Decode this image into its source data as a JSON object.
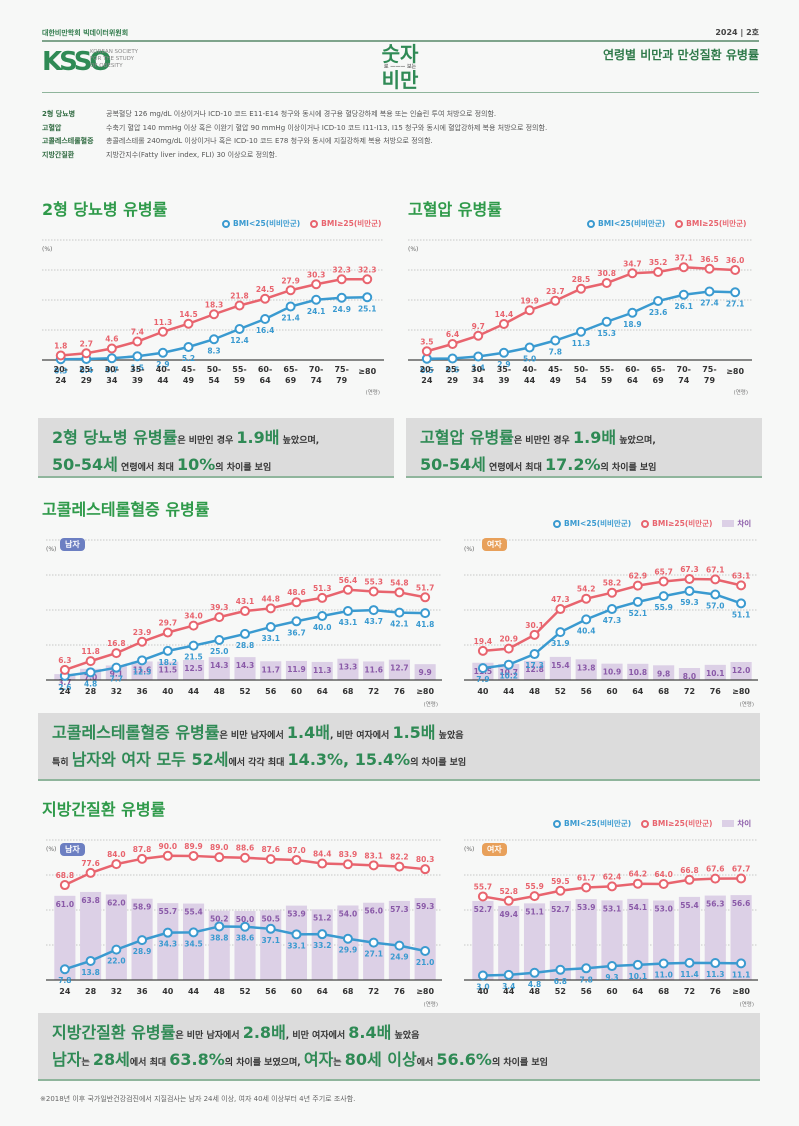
{
  "header": {
    "org_name": "대한비만학회 빅데이터위원회",
    "logo_mark": "KSSO",
    "logo_text": [
      "KOREAN SOCIETY",
      "FOR THE STUDY",
      "OF OBESITY"
    ],
    "brand_line1": "숫자",
    "brand_left": "로",
    "brand_right": "보는",
    "brand_line2": "비만",
    "issue": "2024 | 2호",
    "title": "연령별 비만과 만성질환 유병률"
  },
  "definitions": [
    {
      "term": "2형 당뇨병",
      "desc": "공복혈당 126 mg/dL 이상이거나 ICD-10 코드 E11-E14 청구와 동시에 경구용 혈당강하제 복용 또는 인슐린 투여 처방으로 정의함."
    },
    {
      "term": "고혈압",
      "desc": "수축기 혈압 140 mmHg 이상 혹은 이완기 혈압 90 mmHg 이상이거나 ICD-10 코드 I11-I13, I15 청구와 동시에 혈압강하제 복용 처방으로 정의함."
    },
    {
      "term": "고콜레스테롤혈증",
      "desc": "총콜레스테롤 240mg/dL 이상이거나 혹은 ICD-10 코드 E78 청구와 동시에 지질강하제 복용 처방으로 정의함."
    },
    {
      "term": "지방간질환",
      "desc": "지방간지수(Fatty liver index, FLI) 30 이상으로 정의함."
    }
  ],
  "legend": {
    "normal": "BMI<25(비비만군)",
    "obese": "BMI≥25(비만군)",
    "diff": "차이"
  },
  "colors": {
    "normal": "#3a9ad0",
    "obese": "#e8646e",
    "diff": "#dcd0e6",
    "accent": "#2f8a55"
  },
  "axis_unit": "(%)",
  "age_unit": "(연령)",
  "sections": {
    "diabetes": {
      "title": "2형 당뇨병 유병률"
    },
    "hypertension": {
      "title": "고혈압 유병률"
    },
    "cholesterol": {
      "title": "고콜레스테롤혈증 유병률",
      "male_badge": "남자",
      "female_badge": "여자"
    },
    "fatty_liver": {
      "title": "지방간질환 유병률",
      "male_badge": "남자",
      "female_badge": "여자"
    }
  },
  "summaries": {
    "diabetes": {
      "a": "2형 당뇨병 유병률",
      "b": "은 비만인 경우 ",
      "c": "1.9배",
      "d": " 높았으며,",
      "e": "50-54세",
      "f": " 연령에서 최대 ",
      "g": "10%",
      "h": "의 차이를 보임"
    },
    "hypertension": {
      "a": "고혈압 유병률",
      "b": "은 비만인 경우 ",
      "c": "1.9배",
      "d": " 높았으며,",
      "e": "50-54세",
      "f": " 연령에서 최대 ",
      "g": "17.2%",
      "h": "의 차이를 보임"
    },
    "cholesterol": {
      "a": "고콜레스테롤혈증 유병률",
      "b": "은 비만 남자에서 ",
      "c": "1.4배",
      "d": ", 비만 여자에서 ",
      "e": "1.5배",
      "f": " 높았음",
      "g": "특히 ",
      "h": "남자와 여자 모두 52세",
      "i": "에서 각각 최대 ",
      "j": "14.3%, 15.4%",
      "k": "의 차이를 보임"
    },
    "fatty_liver": {
      "a": "지방간질환 유병률",
      "b": "은 비만 남자에서 ",
      "c": "2.8배",
      "d": ", 비만 여자에서 ",
      "e": "8.4배",
      "f": " 높았음",
      "g": "남자",
      "h": "는 ",
      "i": "28세",
      "j": "에서 최대 ",
      "k": "63.8%",
      "l": "의 차이를 보였으며, ",
      "m": "여자",
      "n": "는 ",
      "o": "80세 이상",
      "p": "에서 ",
      "q": "56.6%",
      "r": "의 차이를 보임"
    }
  },
  "footnote": "※2018년 이후 국가일반건강검진에서 지질검사는 남자 24세 이상, 여자 40세 이상부터 4년 주기로 조사함.",
  "chart_data": [
    {
      "id": "diabetes",
      "type": "line",
      "title": "2형 당뇨병 유병률",
      "ylabel": "(%)",
      "xlabel": "(연령)",
      "categories": [
        "20-24",
        "25-29",
        "30-34",
        "35-39",
        "40-44",
        "45-49",
        "50-54",
        "55-59",
        "60-64",
        "65-69",
        "70-74",
        "75-79",
        "≥80"
      ],
      "series": [
        {
          "name": "BMI<25(비비만군)",
          "values": [
            0.3,
            0.4,
            0.7,
            1.5,
            2.9,
            5.2,
            8.3,
            12.4,
            16.4,
            21.4,
            24.1,
            24.9,
            25.1
          ]
        },
        {
          "name": "BMI≥25(비만군)",
          "values": [
            1.8,
            2.7,
            4.6,
            7.4,
            11.3,
            14.5,
            18.3,
            21.8,
            24.5,
            27.9,
            30.3,
            32.3,
            32.3
          ]
        }
      ],
      "ylim": [
        0,
        40
      ],
      "grid": true,
      "legend": "top-right"
    },
    {
      "id": "hypertension",
      "type": "line",
      "title": "고혈압 유병률",
      "ylabel": "(%)",
      "xlabel": "(연령)",
      "categories": [
        "20-24",
        "25-29",
        "30-34",
        "35-39",
        "40-44",
        "45-49",
        "50-54",
        "55-59",
        "60-64",
        "65-69",
        "70-74",
        "75-79",
        "≥80"
      ],
      "series": [
        {
          "name": "BMI<25(비비만군)",
          "values": [
            0.5,
            0.6,
            1.4,
            2.9,
            5.0,
            7.8,
            11.3,
            15.3,
            18.9,
            23.6,
            26.1,
            27.4,
            27.1
          ]
        },
        {
          "name": "BMI≥25(비만군)",
          "values": [
            3.5,
            6.4,
            9.7,
            14.4,
            19.9,
            23.7,
            28.5,
            30.8,
            34.7,
            35.2,
            37.1,
            36.5,
            36.0
          ]
        }
      ],
      "ylim": [
        0,
        40
      ],
      "grid": true,
      "legend": "top-right"
    },
    {
      "id": "cholesterol_male",
      "type": "line",
      "title": "고콜레스테롤혈증 유병률 - 남자",
      "ylabel": "(%)",
      "xlabel": "(연령)",
      "categories": [
        "24",
        "28",
        "32",
        "36",
        "40",
        "44",
        "48",
        "52",
        "56",
        "60",
        "64",
        "68",
        "72",
        "76",
        "≥80"
      ],
      "series": [
        {
          "name": "BMI<25(비비만군)",
          "values": [
            2.6,
            4.8,
            7.7,
            12.3,
            18.2,
            21.5,
            25.0,
            28.8,
            33.1,
            36.7,
            40.0,
            43.1,
            43.7,
            42.1,
            41.8
          ]
        },
        {
          "name": "BMI≥25(비만군)",
          "values": [
            6.3,
            11.8,
            16.8,
            23.9,
            29.7,
            34.0,
            39.3,
            43.1,
            44.8,
            48.6,
            51.3,
            56.4,
            55.3,
            54.8,
            51.7
          ]
        },
        {
          "name": "차이",
          "type": "bar",
          "values": [
            3.7,
            7.0,
            9.1,
            11.6,
            11.5,
            12.5,
            14.3,
            14.3,
            11.7,
            11.9,
            11.3,
            13.3,
            11.6,
            12.7,
            9.9
          ]
        }
      ],
      "ylim": [
        0,
        75
      ],
      "grid": true
    },
    {
      "id": "cholesterol_female",
      "type": "line",
      "title": "고콜레스테롤혈증 유병률 - 여자",
      "ylabel": "(%)",
      "xlabel": "(연령)",
      "categories": [
        "40",
        "44",
        "48",
        "52",
        "56",
        "60",
        "64",
        "68",
        "72",
        "76",
        "≥80"
      ],
      "series": [
        {
          "name": "BMI<25(비비만군)",
          "values": [
            7.9,
            10.2,
            17.3,
            31.9,
            40.4,
            47.3,
            52.1,
            55.9,
            59.3,
            57.0,
            51.1
          ]
        },
        {
          "name": "BMI≥25(비만군)",
          "values": [
            19.4,
            20.9,
            30.1,
            47.3,
            54.2,
            58.2,
            62.9,
            65.7,
            67.3,
            67.1,
            63.1
          ]
        },
        {
          "name": "차이",
          "type": "bar",
          "values": [
            11.5,
            10.7,
            12.8,
            15.4,
            13.8,
            10.9,
            10.8,
            9.8,
            8.0,
            10.1,
            12.0
          ]
        }
      ],
      "ylim": [
        0,
        80
      ],
      "grid": true,
      "legend": "top-right"
    },
    {
      "id": "fatty_liver_male",
      "type": "line",
      "title": "지방간질환 유병률 - 남자",
      "ylabel": "(%)",
      "xlabel": "(연령)",
      "categories": [
        "24",
        "28",
        "32",
        "36",
        "40",
        "44",
        "48",
        "52",
        "56",
        "60",
        "64",
        "68",
        "72",
        "76",
        "≥80"
      ],
      "series": [
        {
          "name": "BMI<25(비비만군)",
          "values": [
            7.8,
            13.8,
            22.0,
            28.9,
            34.3,
            34.5,
            38.8,
            38.6,
            37.1,
            33.1,
            33.2,
            29.9,
            27.1,
            24.9,
            21.0
          ]
        },
        {
          "name": "BMI≥25(비만군)",
          "values": [
            68.8,
            77.6,
            84.0,
            87.8,
            90.0,
            89.9,
            89.0,
            88.6,
            87.6,
            87.0,
            84.4,
            83.9,
            83.1,
            82.2,
            80.3
          ]
        },
        {
          "name": "차이",
          "type": "bar",
          "values": [
            61.0,
            63.8,
            62.0,
            58.9,
            55.7,
            55.4,
            50.2,
            50.0,
            50.5,
            53.9,
            51.2,
            54.0,
            56.0,
            57.3,
            59.3
          ]
        }
      ],
      "ylim": [
        0,
        100
      ],
      "grid": true
    },
    {
      "id": "fatty_liver_female",
      "type": "line",
      "title": "지방간질환 유병률 - 여자",
      "ylabel": "(%)",
      "xlabel": "(연령)",
      "categories": [
        "40",
        "44",
        "48",
        "52",
        "56",
        "60",
        "64",
        "68",
        "72",
        "76",
        "≥80"
      ],
      "series": [
        {
          "name": "BMI<25(비비만군)",
          "values": [
            3.0,
            3.4,
            4.8,
            6.8,
            7.8,
            9.3,
            10.1,
            11.0,
            11.4,
            11.3,
            11.1
          ]
        },
        {
          "name": "BMI≥25(비만군)",
          "values": [
            55.7,
            52.8,
            55.9,
            59.5,
            61.7,
            62.4,
            64.2,
            64.0,
            66.8,
            67.6,
            67.7
          ]
        },
        {
          "name": "차이",
          "type": "bar",
          "values": [
            52.7,
            49.4,
            51.1,
            52.7,
            53.9,
            53.1,
            54.1,
            53.0,
            55.4,
            56.3,
            56.6
          ]
        }
      ],
      "ylim": [
        0,
        80
      ],
      "grid": true,
      "legend": "top-right"
    }
  ]
}
